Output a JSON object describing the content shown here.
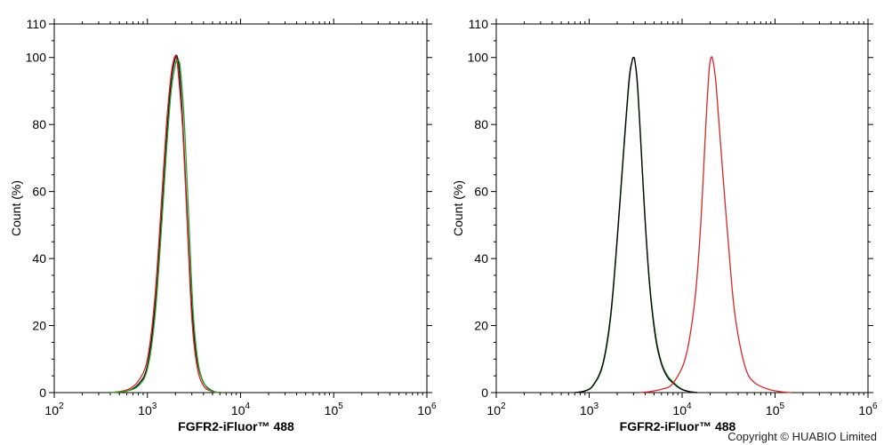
{
  "copyright": "Copyright © HUABIO Limited",
  "chart_data": [
    {
      "type": "line",
      "xlabel": "FGFR2-iFluor™ 488",
      "ylabel": "Count (%)",
      "xscale": "log",
      "xlim": [
        100,
        1000000
      ],
      "ylim": [
        0,
        110
      ],
      "x_tick_labels": [
        {
          "base": "10",
          "exp": "2"
        },
        {
          "base": "10",
          "exp": "3"
        },
        {
          "base": "10",
          "exp": "4"
        },
        {
          "base": "10",
          "exp": "5"
        },
        {
          "base": "10",
          "exp": "6"
        }
      ],
      "y_tick_labels": [
        "0",
        "20",
        "40",
        "60",
        "80",
        "100",
        "110"
      ],
      "series": [
        {
          "color": "#000000",
          "x": [
            400,
            600,
            800,
            1000,
            1200,
            1400,
            1600,
            1800,
            2000,
            2100,
            2200,
            2400,
            2700,
            3000,
            3400,
            4000,
            5000,
            6000
          ],
          "y": [
            0,
            0.5,
            2.5,
            8,
            25,
            50,
            75,
            93,
            100,
            100,
            96,
            80,
            50,
            25,
            10,
            3,
            0.5,
            0
          ]
        },
        {
          "color": "#d62728",
          "x": [
            400,
            600,
            800,
            1000,
            1200,
            1400,
            1600,
            1800,
            1950,
            2050,
            2150,
            2400,
            2700,
            3000,
            3400,
            4000,
            5000,
            6000
          ],
          "y": [
            0,
            0.8,
            3.5,
            10,
            28,
            55,
            80,
            95,
            100,
            100,
            95,
            78,
            48,
            22,
            8,
            2,
            0.3,
            0
          ]
        },
        {
          "color": "#2ca02c",
          "x": [
            400,
            600,
            800,
            1000,
            1200,
            1400,
            1600,
            1800,
            2000,
            2100,
            2250,
            2500,
            2800,
            3100,
            3500,
            4100,
            5000,
            6000
          ],
          "y": [
            0,
            0.5,
            2,
            7,
            22,
            47,
            72,
            90,
            98,
            99,
            97,
            80,
            50,
            24,
            9,
            2.5,
            0.4,
            0
          ]
        }
      ]
    },
    {
      "type": "line",
      "xlabel": "FGFR2-iFluor™ 488",
      "ylabel": "Count (%)",
      "xscale": "log",
      "xlim": [
        100,
        1000000
      ],
      "ylim": [
        0,
        110
      ],
      "x_tick_labels": [
        {
          "base": "10",
          "exp": "2"
        },
        {
          "base": "10",
          "exp": "3"
        },
        {
          "base": "10",
          "exp": "4"
        },
        {
          "base": "10",
          "exp": "5"
        },
        {
          "base": "10",
          "exp": "6"
        }
      ],
      "y_tick_labels": [
        "0",
        "20",
        "40",
        "60",
        "80",
        "100",
        "110"
      ],
      "series": [
        {
          "color": "#2ca02c",
          "x": [
            700,
            900,
            1100,
            1400,
            1700,
            2000,
            2400,
            2700,
            2900,
            3000,
            3100,
            3300,
            3600,
            4000,
            4500,
            5200,
            6000,
            7000,
            8500,
            10000,
            12000,
            14500
          ],
          "y": [
            0,
            0.5,
            2,
            8,
            22,
            45,
            75,
            93,
            99,
            100,
            99,
            93,
            75,
            52,
            32,
            17,
            9,
            5,
            2.5,
            1,
            0.3,
            0
          ]
        },
        {
          "color": "#000000",
          "x": [
            700,
            900,
            1100,
            1400,
            1700,
            2000,
            2400,
            2700,
            2900,
            3000,
            3100,
            3300,
            3600,
            4000,
            4500,
            5200,
            6000,
            7000,
            8500,
            10000,
            12000,
            14500
          ],
          "y": [
            0,
            0.5,
            2.2,
            8.5,
            23,
            46,
            76,
            94,
            99,
            100,
            99,
            92,
            74,
            51,
            31,
            16,
            8.5,
            4.5,
            2.2,
            0.9,
            0.3,
            0
          ]
        },
        {
          "color": "#d62728",
          "x": [
            3500,
            4500,
            6000,
            7500,
            9000,
            10500,
            12000,
            14000,
            16000,
            18000,
            19500,
            20500,
            21500,
            23000,
            25000,
            28000,
            32000,
            36000,
            42000,
            50000,
            60000,
            75000,
            90000,
            120000,
            150000
          ],
          "y": [
            0,
            0.3,
            1,
            2,
            5,
            9,
            16,
            30,
            52,
            80,
            96,
            100,
            99,
            93,
            80,
            62,
            42,
            26,
            14,
            6,
            3,
            1.5,
            0.8,
            0.2,
            0
          ]
        }
      ]
    }
  ]
}
